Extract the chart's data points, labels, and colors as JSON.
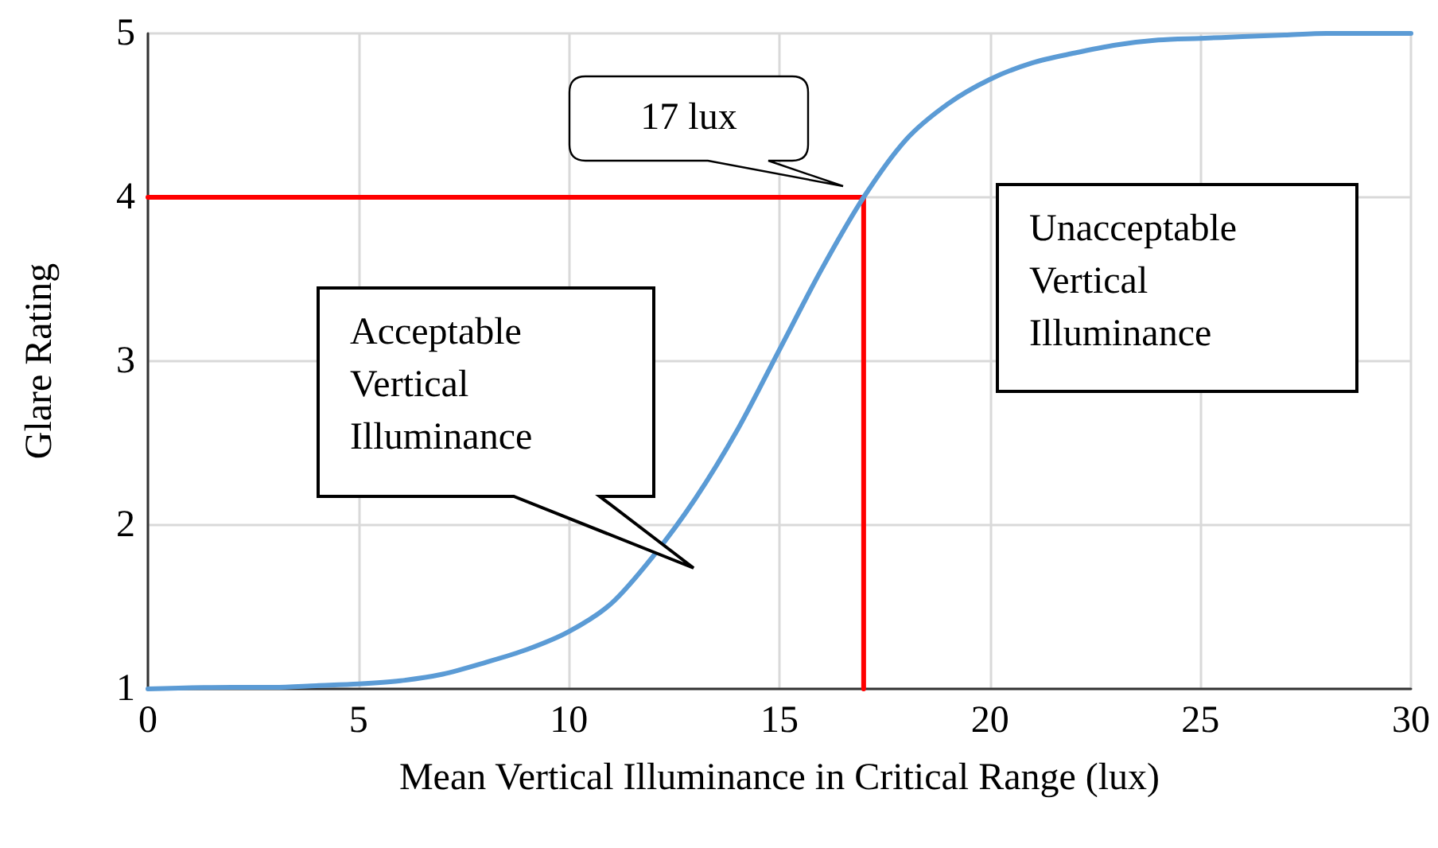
{
  "chart_data": {
    "type": "line",
    "xlabel": "Mean Vertical Illuminance in Critical Range (lux)",
    "ylabel": "Glare Rating",
    "xlim": [
      0,
      30
    ],
    "xticks": [
      0,
      5,
      10,
      15,
      20,
      25,
      30
    ],
    "ylim": [
      1,
      5
    ],
    "yticks": [
      1,
      2,
      3,
      4,
      5
    ],
    "grid": true,
    "marker": "none",
    "line_style": "solid",
    "series": [
      {
        "color": "#ff0000",
        "x": [
          0,
          17,
          17
        ],
        "values": [
          4,
          4,
          1
        ]
      },
      {
        "color": "#5b9bd5",
        "x": [
          0,
          2,
          3,
          4,
          5,
          6,
          7,
          8,
          9,
          10,
          11,
          12,
          13,
          14,
          15,
          16,
          17,
          18,
          19,
          20,
          21,
          22,
          23,
          24,
          25,
          26,
          27,
          28,
          30
        ],
        "values": [
          1,
          1.01,
          1.01,
          1.02,
          1.03,
          1.05,
          1.09,
          1.16,
          1.24,
          1.35,
          1.52,
          1.81,
          2.16,
          2.58,
          3.07,
          3.56,
          4,
          4.35,
          4.57,
          4.72,
          4.82,
          4.88,
          4.93,
          4.96,
          4.97,
          4.98,
          4.99,
          5,
          5
        ]
      }
    ],
    "annotations": [
      "17 lux",
      "Acceptable Vertical Illuminance",
      "Unacceptable Vertical Illuminance"
    ]
  }
}
